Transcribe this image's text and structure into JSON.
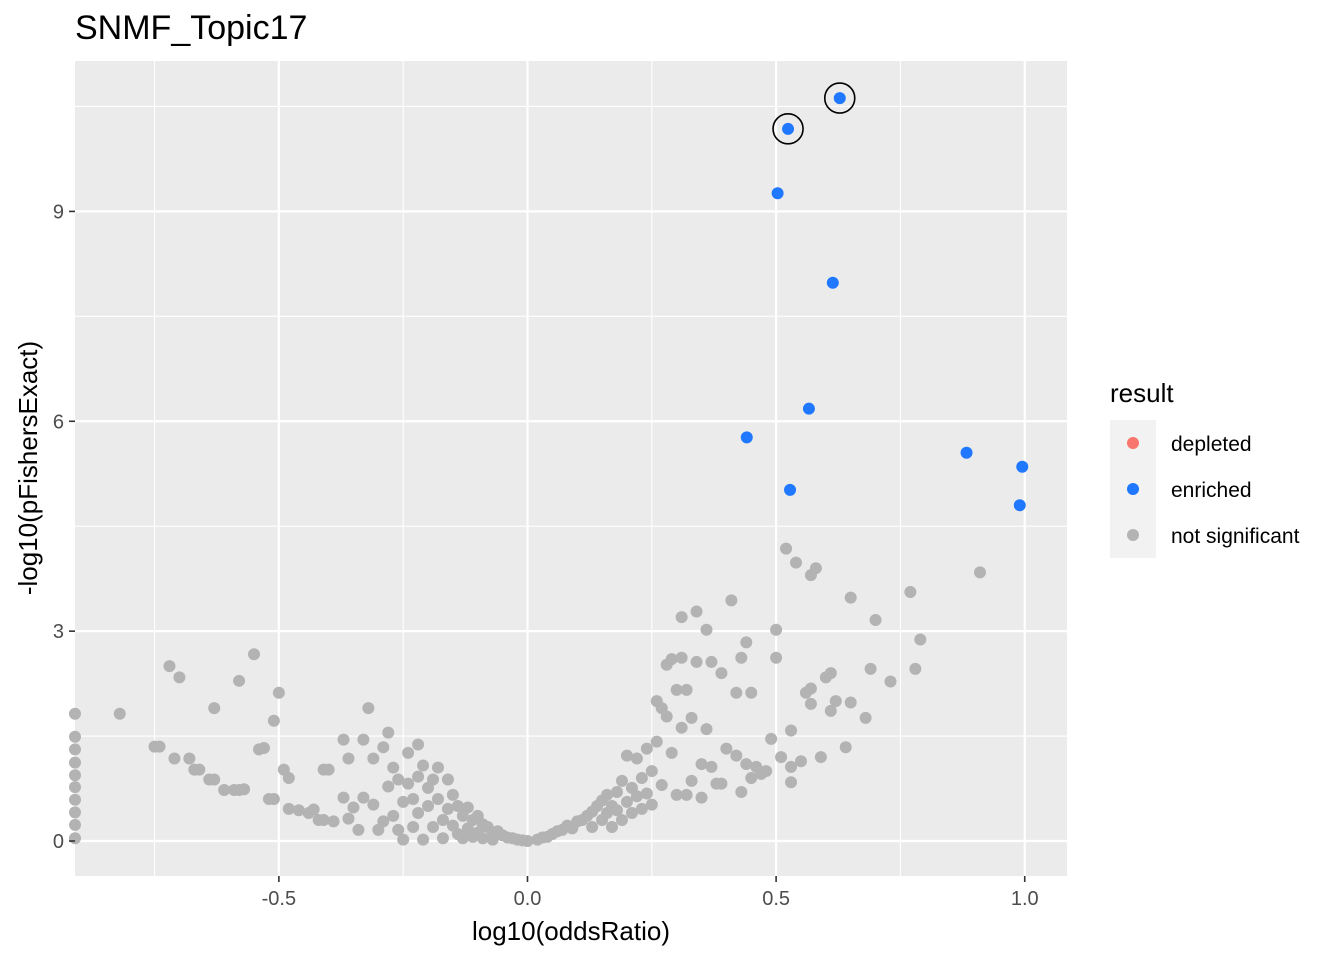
{
  "chart_data": {
    "type": "scatter",
    "title": "SNMF_Topic17",
    "xlabel": "log10(oddsRatio)",
    "ylabel": "-log10(pFishersExact)",
    "xlim": [
      -0.91,
      1.085
    ],
    "ylim": [
      -0.5,
      11.15
    ],
    "x_ticks": [
      {
        "value": -0.5,
        "label": "-0.5"
      },
      {
        "value": 0.0,
        "label": "0.0"
      },
      {
        "value": 0.5,
        "label": "0.5"
      },
      {
        "value": 1.0,
        "label": "1.0"
      }
    ],
    "y_ticks": [
      {
        "value": 0,
        "label": "0"
      },
      {
        "value": 3,
        "label": "3"
      },
      {
        "value": 6,
        "label": "6"
      },
      {
        "value": 9,
        "label": "9"
      }
    ],
    "grid": true,
    "legend": {
      "title": "result",
      "position": "right",
      "entries": [
        {
          "label": "depleted",
          "color": "#F8766D"
        },
        {
          "label": "enriched",
          "color": "#1F78FF"
        },
        {
          "label": "not significant",
          "color": "#B3B3B3"
        }
      ]
    },
    "colors": {
      "panel": "#EBEBEB",
      "grid": "#FFFFFF",
      "depleted": "#F8766D",
      "enriched": "#1F78FF",
      "not_significant": "#B3B3B3"
    },
    "series": [
      {
        "name": "enriched",
        "points": [
          [
            0.628,
            10.62
          ],
          [
            0.524,
            10.18
          ],
          [
            0.503,
            9.26
          ],
          [
            0.614,
            7.98
          ],
          [
            0.566,
            6.18
          ],
          [
            0.441,
            5.77
          ],
          [
            0.528,
            5.02
          ],
          [
            0.883,
            5.55
          ],
          [
            0.995,
            5.35
          ],
          [
            0.99,
            4.8
          ]
        ]
      },
      {
        "name": "not significant",
        "points": [
          [
            -0.91,
            1.82
          ],
          [
            -0.91,
            1.49
          ],
          [
            -0.91,
            1.31
          ],
          [
            -0.91,
            1.12
          ],
          [
            -0.91,
            0.94
          ],
          [
            -0.91,
            0.77
          ],
          [
            -0.91,
            0.59
          ],
          [
            -0.91,
            0.41
          ],
          [
            -0.91,
            0.23
          ],
          [
            -0.91,
            0.04
          ],
          [
            -0.82,
            1.82
          ],
          [
            -0.72,
            2.5
          ],
          [
            -0.7,
            2.34
          ],
          [
            -0.75,
            1.35
          ],
          [
            -0.74,
            1.35
          ],
          [
            -0.71,
            1.18
          ],
          [
            -0.68,
            1.18
          ],
          [
            -0.67,
            1.02
          ],
          [
            -0.66,
            1.02
          ],
          [
            -0.64,
            0.88
          ],
          [
            -0.63,
            0.88
          ],
          [
            -0.63,
            1.9
          ],
          [
            -0.61,
            0.73
          ],
          [
            -0.59,
            0.73
          ],
          [
            -0.58,
            0.73
          ],
          [
            -0.57,
            0.74
          ],
          [
            -0.55,
            2.67
          ],
          [
            -0.58,
            2.29
          ],
          [
            -0.54,
            1.31
          ],
          [
            -0.53,
            1.33
          ],
          [
            -0.52,
            0.6
          ],
          [
            -0.51,
            0.6
          ],
          [
            -0.5,
            2.12
          ],
          [
            -0.51,
            1.72
          ],
          [
            -0.49,
            1.02
          ],
          [
            -0.48,
            0.9
          ],
          [
            -0.48,
            0.46
          ],
          [
            -0.46,
            0.44
          ],
          [
            -0.44,
            0.4
          ],
          [
            -0.43,
            0.45
          ],
          [
            -0.42,
            0.3
          ],
          [
            -0.41,
            1.02
          ],
          [
            -0.4,
            1.02
          ],
          [
            -0.41,
            0.3
          ],
          [
            -0.39,
            0.28
          ],
          [
            -0.37,
            1.45
          ],
          [
            -0.37,
            0.62
          ],
          [
            -0.36,
            1.18
          ],
          [
            -0.36,
            0.32
          ],
          [
            -0.35,
            0.48
          ],
          [
            -0.34,
            0.16
          ],
          [
            -0.33,
            1.45
          ],
          [
            -0.33,
            0.62
          ],
          [
            -0.32,
            1.9
          ],
          [
            -0.31,
            1.18
          ],
          [
            -0.31,
            0.52
          ],
          [
            -0.3,
            0.16
          ],
          [
            -0.29,
            1.34
          ],
          [
            -0.29,
            0.28
          ],
          [
            -0.28,
            1.55
          ],
          [
            -0.28,
            0.78
          ],
          [
            -0.27,
            1.05
          ],
          [
            -0.27,
            0.36
          ],
          [
            -0.26,
            0.88
          ],
          [
            -0.26,
            0.16
          ],
          [
            -0.25,
            0.56
          ],
          [
            -0.25,
            0.02
          ],
          [
            -0.24,
            1.26
          ],
          [
            -0.24,
            0.82
          ],
          [
            -0.23,
            0.6
          ],
          [
            -0.23,
            0.2
          ],
          [
            -0.22,
            1.38
          ],
          [
            -0.22,
            0.92
          ],
          [
            -0.22,
            0.4
          ],
          [
            -0.21,
            0.02
          ],
          [
            -0.21,
            1.08
          ],
          [
            -0.2,
            0.76
          ],
          [
            -0.2,
            0.5
          ],
          [
            -0.19,
            0.2
          ],
          [
            -0.19,
            0.88
          ],
          [
            -0.18,
            1.05
          ],
          [
            -0.18,
            0.6
          ],
          [
            -0.17,
            0.3
          ],
          [
            -0.17,
            0.04
          ],
          [
            -0.16,
            0.88
          ],
          [
            -0.16,
            0.46
          ],
          [
            -0.15,
            0.66
          ],
          [
            -0.15,
            0.22
          ],
          [
            -0.14,
            0.5
          ],
          [
            -0.14,
            0.1
          ],
          [
            -0.13,
            0.36
          ],
          [
            -0.13,
            0.04
          ],
          [
            -0.12,
            0.48
          ],
          [
            -0.12,
            0.18
          ],
          [
            -0.11,
            0.3
          ],
          [
            -0.11,
            0.06
          ],
          [
            -0.1,
            0.36
          ],
          [
            -0.1,
            0.12
          ],
          [
            -0.09,
            0.24
          ],
          [
            -0.09,
            0.04
          ],
          [
            -0.08,
            0.2
          ],
          [
            -0.07,
            0.12
          ],
          [
            -0.07,
            0.02
          ],
          [
            -0.06,
            0.14
          ],
          [
            -0.05,
            0.08
          ],
          [
            -0.04,
            0.05
          ],
          [
            -0.03,
            0.04
          ],
          [
            -0.02,
            0.02
          ],
          [
            -0.01,
            0.01
          ],
          [
            0.0,
            0.0
          ],
          [
            0.02,
            0.02
          ],
          [
            0.03,
            0.05
          ],
          [
            0.04,
            0.06
          ],
          [
            0.05,
            0.1
          ],
          [
            0.06,
            0.14
          ],
          [
            0.07,
            0.16
          ],
          [
            0.08,
            0.22
          ],
          [
            0.09,
            0.18
          ],
          [
            0.1,
            0.28
          ],
          [
            0.11,
            0.3
          ],
          [
            0.12,
            0.36
          ],
          [
            0.13,
            0.42
          ],
          [
            0.13,
            0.2
          ],
          [
            0.14,
            0.5
          ],
          [
            0.15,
            0.58
          ],
          [
            0.15,
            0.3
          ],
          [
            0.16,
            0.66
          ],
          [
            0.16,
            0.4
          ],
          [
            0.17,
            0.5
          ],
          [
            0.17,
            0.2
          ],
          [
            0.18,
            0.7
          ],
          [
            0.18,
            0.44
          ],
          [
            0.19,
            0.86
          ],
          [
            0.19,
            0.3
          ],
          [
            0.2,
            0.56
          ],
          [
            0.2,
            1.22
          ],
          [
            0.21,
            0.76
          ],
          [
            0.21,
            0.4
          ],
          [
            0.22,
            1.18
          ],
          [
            0.22,
            0.64
          ],
          [
            0.23,
            0.9
          ],
          [
            0.23,
            0.46
          ],
          [
            0.24,
            1.32
          ],
          [
            0.24,
            0.68
          ],
          [
            0.25,
            1.0
          ],
          [
            0.25,
            0.52
          ],
          [
            0.26,
            2.0
          ],
          [
            0.26,
            1.42
          ],
          [
            0.27,
            1.9
          ],
          [
            0.27,
            0.8
          ],
          [
            0.28,
            2.52
          ],
          [
            0.28,
            1.78
          ],
          [
            0.29,
            2.6
          ],
          [
            0.29,
            1.26
          ],
          [
            0.3,
            2.16
          ],
          [
            0.3,
            0.66
          ],
          [
            0.31,
            3.2
          ],
          [
            0.31,
            2.62
          ],
          [
            0.31,
            1.62
          ],
          [
            0.32,
            2.16
          ],
          [
            0.32,
            0.66
          ],
          [
            0.33,
            1.76
          ],
          [
            0.33,
            0.86
          ],
          [
            0.34,
            3.28
          ],
          [
            0.34,
            2.56
          ],
          [
            0.35,
            0.62
          ],
          [
            0.35,
            1.1
          ],
          [
            0.36,
            3.02
          ],
          [
            0.36,
            1.6
          ],
          [
            0.37,
            2.56
          ],
          [
            0.37,
            1.06
          ],
          [
            0.38,
            0.82
          ],
          [
            0.39,
            2.4
          ],
          [
            0.39,
            0.82
          ],
          [
            0.4,
            1.32
          ],
          [
            0.41,
            3.44
          ],
          [
            0.42,
            2.12
          ],
          [
            0.42,
            1.22
          ],
          [
            0.43,
            0.7
          ],
          [
            0.43,
            2.62
          ],
          [
            0.44,
            2.84
          ],
          [
            0.44,
            1.1
          ],
          [
            0.45,
            2.12
          ],
          [
            0.45,
            0.9
          ],
          [
            0.46,
            1.06
          ],
          [
            0.47,
            0.96
          ],
          [
            0.48,
            1.0
          ],
          [
            0.49,
            1.46
          ],
          [
            0.5,
            3.02
          ],
          [
            0.5,
            2.62
          ],
          [
            0.51,
            1.2
          ],
          [
            0.52,
            4.18
          ],
          [
            0.53,
            1.58
          ],
          [
            0.53,
            1.06
          ],
          [
            0.53,
            0.84
          ],
          [
            0.54,
            3.98
          ],
          [
            0.55,
            1.14
          ],
          [
            0.56,
            2.12
          ],
          [
            0.57,
            2.18
          ],
          [
            0.57,
            1.96
          ],
          [
            0.57,
            3.8
          ],
          [
            0.58,
            3.9
          ],
          [
            0.59,
            1.2
          ],
          [
            0.6,
            2.34
          ],
          [
            0.61,
            2.4
          ],
          [
            0.61,
            1.86
          ],
          [
            0.62,
            2.0
          ],
          [
            0.64,
            1.34
          ],
          [
            0.65,
            1.98
          ],
          [
            0.65,
            3.48
          ],
          [
            0.68,
            1.76
          ],
          [
            0.69,
            2.46
          ],
          [
            0.7,
            3.16
          ],
          [
            0.73,
            2.28
          ],
          [
            0.77,
            3.56
          ],
          [
            0.78,
            2.46
          ],
          [
            0.79,
            2.88
          ],
          [
            0.91,
            3.84
          ]
        ]
      }
    ],
    "highlighted": [
      [
        0.628,
        10.62
      ],
      [
        0.524,
        10.18
      ]
    ]
  }
}
